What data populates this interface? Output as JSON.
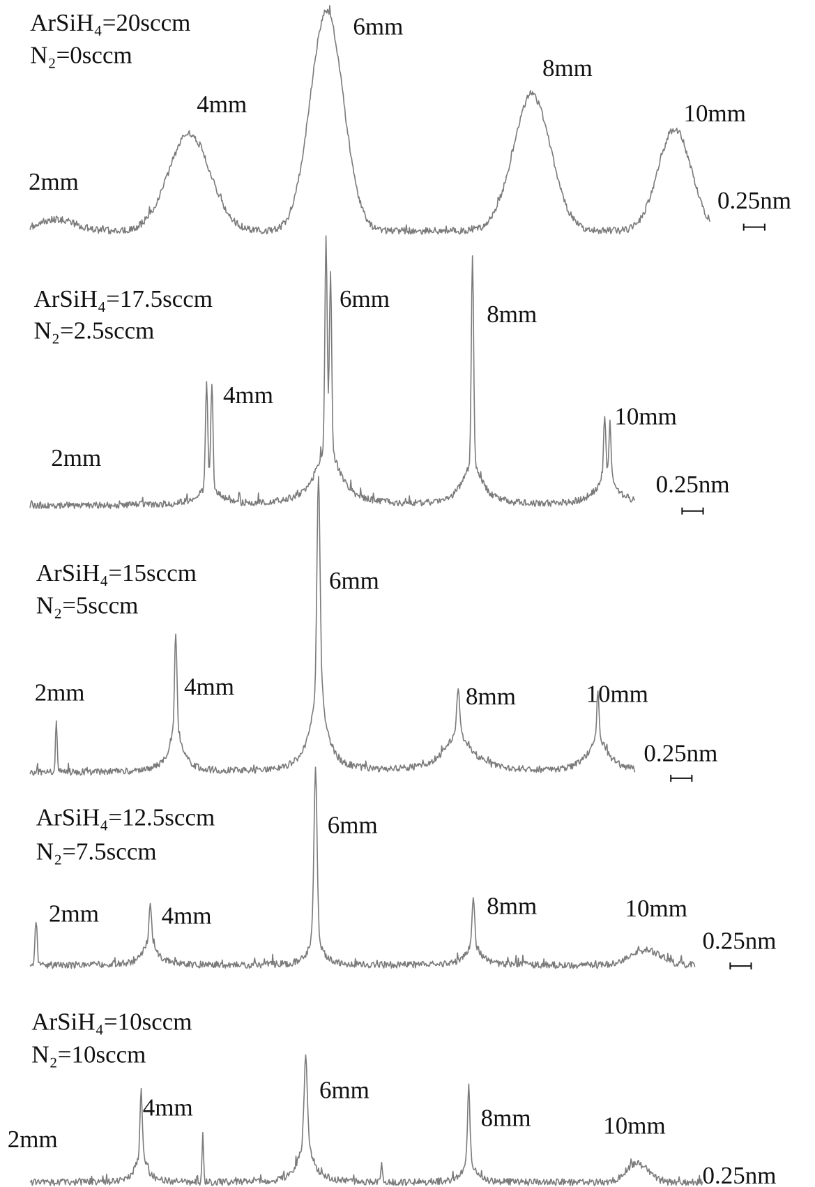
{
  "panels": [
    {
      "condition": [
        "ArSiH₄=20sccm",
        "N₂=0sccm"
      ],
      "peaks": [
        "2mm",
        "4mm",
        "6mm",
        "8mm",
        "10mm"
      ],
      "scale": "0.25nm"
    },
    {
      "condition": [
        "ArSiH₄=17.5sccm",
        "N₂=2.5sccm"
      ],
      "peaks": [
        "2mm",
        "4mm",
        "6mm",
        "8mm",
        "10mm"
      ],
      "scale": "0.25nm"
    },
    {
      "condition": [
        "ArSiH₄=15sccm",
        "N₂=5sccm"
      ],
      "peaks": [
        "2mm",
        "4mm",
        "6mm",
        "8mm",
        "10mm"
      ],
      "scale": "0.25nm"
    },
    {
      "condition": [
        "ArSiH₄=12.5sccm",
        "N₂=7.5sccm"
      ],
      "peaks": [
        "2mm",
        "4mm",
        "6mm",
        "8mm",
        "10mm"
      ],
      "scale": "0.25nm"
    },
    {
      "condition": [
        "ArSiH₄=10sccm",
        "N₂=10sccm"
      ],
      "peaks": [
        "2mm",
        "4mm",
        "6mm",
        "8mm",
        "10mm"
      ],
      "scale": "0.25nm"
    }
  ]
}
